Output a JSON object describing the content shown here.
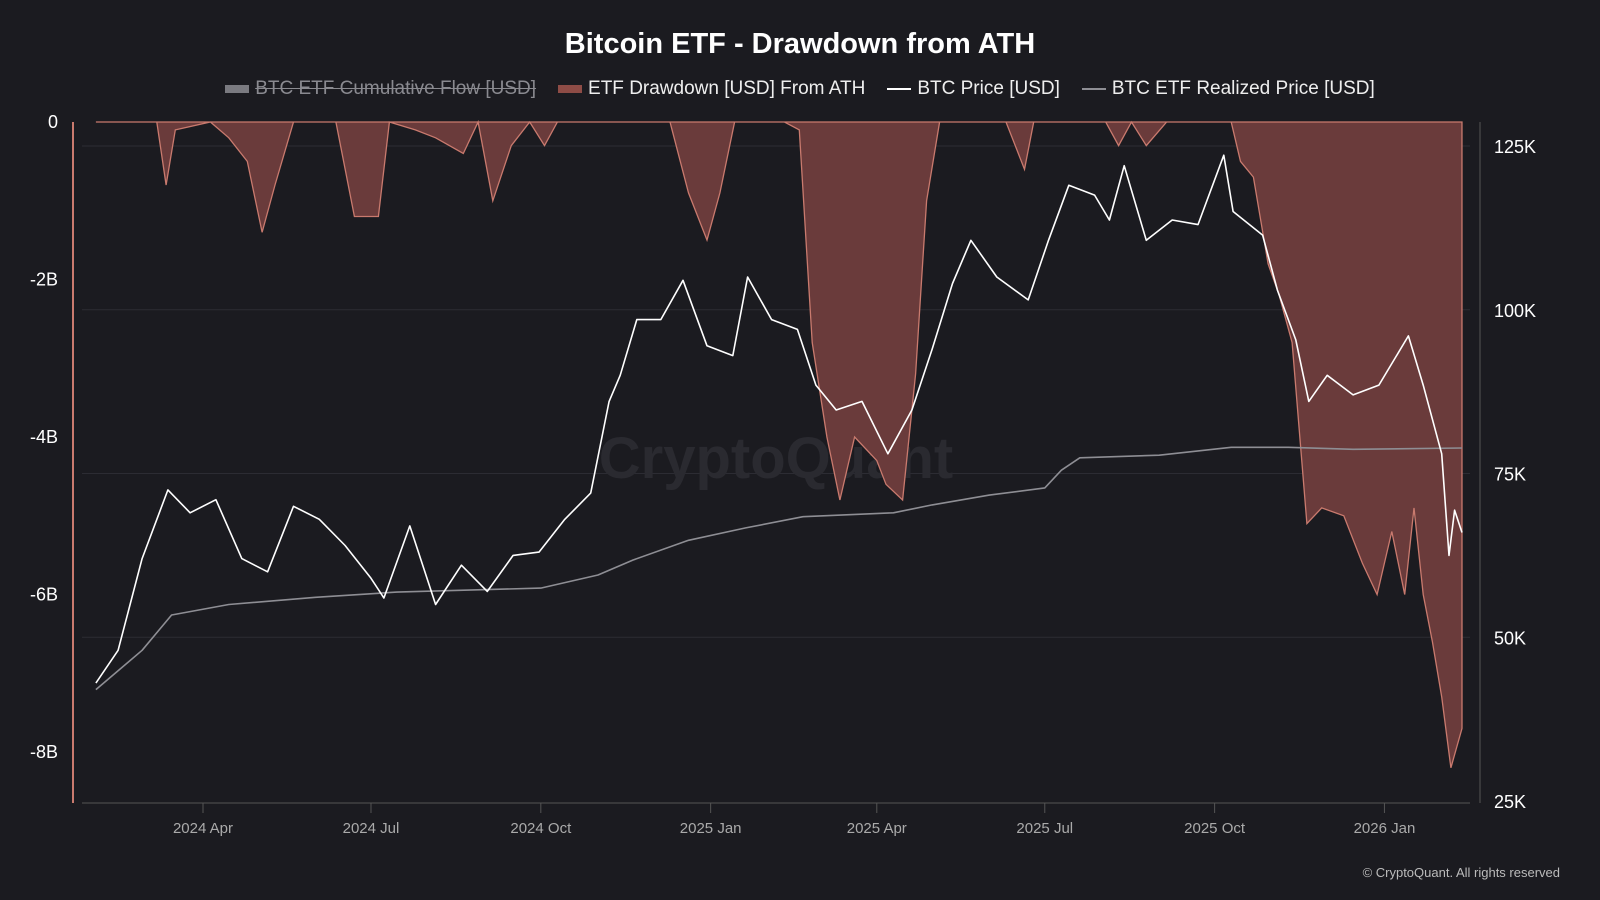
{
  "chart_data": {
    "type": "line",
    "title": "Bitcoin ETF - Drawdown from ATH",
    "legend": [
      {
        "name": "BTC ETF Cumulative Flow [USD]",
        "color": "#8a8a90",
        "hidden": true
      },
      {
        "name": "ETF Drawdown [USD] From ATH",
        "color": "#a85a52"
      },
      {
        "name": "BTC Price [USD]",
        "color": "#ffffff"
      },
      {
        "name": "BTC ETF Realized Price [USD]",
        "color": "#8e8e94"
      }
    ],
    "legend_placement": "top-center",
    "x_ticks": [
      {
        "date": "2024-04-01",
        "label": "2024 Apr"
      },
      {
        "date": "2024-07-01",
        "label": "2024 Jul"
      },
      {
        "date": "2024-10-01",
        "label": "2024 Oct"
      },
      {
        "date": "2025-01-01",
        "label": "2025 Jan"
      },
      {
        "date": "2025-04-01",
        "label": "2025 Apr"
      },
      {
        "date": "2025-07-01",
        "label": "2025 Jul"
      },
      {
        "date": "2025-10-01",
        "label": "2025 Oct"
      },
      {
        "date": "2026-01-01",
        "label": "2026 Jan"
      }
    ],
    "x_range": [
      "2024-02-03",
      "2026-02-12"
    ],
    "left_axis": {
      "unit": "USD billions",
      "range": [
        -8.6,
        0
      ],
      "ticks": [
        {
          "v": 0,
          "label": "0"
        },
        {
          "v": -2,
          "label": "-2B"
        },
        {
          "v": -4,
          "label": "-4B"
        },
        {
          "v": -6,
          "label": "-6B"
        },
        {
          "v": -8,
          "label": "-8B"
        }
      ]
    },
    "right_axis": {
      "unit": "USD thousands",
      "range": [
        25,
        128.7
      ],
      "ticks": [
        {
          "v": 125,
          "label": "125K"
        },
        {
          "v": 100,
          "label": "100K"
        },
        {
          "v": 75,
          "label": "75K"
        },
        {
          "v": 50,
          "label": "50K"
        },
        {
          "v": 25,
          "label": "25K"
        }
      ]
    },
    "grid": true,
    "series": [
      {
        "name": "ETF Drawdown [USD] From ATH",
        "axis": "left",
        "type": "area",
        "points": [
          [
            "2024-02-03",
            0
          ],
          [
            "2024-03-07",
            0
          ],
          [
            "2024-03-12",
            -0.8
          ],
          [
            "2024-03-17",
            -0.1
          ],
          [
            "2024-04-05",
            0
          ],
          [
            "2024-04-15",
            -0.2
          ],
          [
            "2024-04-25",
            -0.5
          ],
          [
            "2024-05-03",
            -1.4
          ],
          [
            "2024-05-10",
            -0.8
          ],
          [
            "2024-05-20",
            0
          ],
          [
            "2024-06-12",
            0
          ],
          [
            "2024-06-22",
            -1.2
          ],
          [
            "2024-07-05",
            -1.2
          ],
          [
            "2024-07-11",
            0
          ],
          [
            "2024-07-25",
            -0.1
          ],
          [
            "2024-08-05",
            -0.2
          ],
          [
            "2024-08-20",
            -0.4
          ],
          [
            "2024-08-28",
            0
          ],
          [
            "2024-09-05",
            -1.0
          ],
          [
            "2024-09-15",
            -0.3
          ],
          [
            "2024-09-25",
            0
          ],
          [
            "2024-10-03",
            -0.3
          ],
          [
            "2024-10-10",
            0
          ],
          [
            "2024-12-10",
            0
          ],
          [
            "2024-12-20",
            -0.9
          ],
          [
            "2024-12-30",
            -1.5
          ],
          [
            "2025-01-06",
            -0.9
          ],
          [
            "2025-01-14",
            0
          ],
          [
            "2025-02-10",
            0
          ],
          [
            "2025-02-18",
            -0.1
          ],
          [
            "2025-02-25",
            -2.8
          ],
          [
            "2025-03-05",
            -4.0
          ],
          [
            "2025-03-12",
            -4.8
          ],
          [
            "2025-03-20",
            -4.0
          ],
          [
            "2025-04-01",
            -4.3
          ],
          [
            "2025-04-06",
            -4.6
          ],
          [
            "2025-04-15",
            -4.8
          ],
          [
            "2025-04-22",
            -3.2
          ],
          [
            "2025-04-28",
            -1.0
          ],
          [
            "2025-05-05",
            0
          ],
          [
            "2025-06-10",
            0
          ],
          [
            "2025-06-20",
            -0.6
          ],
          [
            "2025-06-25",
            0
          ],
          [
            "2025-08-03",
            0
          ],
          [
            "2025-08-10",
            -0.3
          ],
          [
            "2025-08-17",
            0
          ],
          [
            "2025-08-25",
            -0.3
          ],
          [
            "2025-09-05",
            0
          ],
          [
            "2025-10-10",
            0
          ],
          [
            "2025-10-15",
            -0.5
          ],
          [
            "2025-10-22",
            -0.7
          ],
          [
            "2025-10-30",
            -1.8
          ],
          [
            "2025-11-05",
            -2.2
          ],
          [
            "2025-11-12",
            -2.8
          ],
          [
            "2025-11-20",
            -5.1
          ],
          [
            "2025-11-28",
            -4.9
          ],
          [
            "2025-12-10",
            -5.0
          ],
          [
            "2025-12-20",
            -5.6
          ],
          [
            "2025-12-28",
            -6.0
          ],
          [
            "2026-01-05",
            -5.2
          ],
          [
            "2026-01-12",
            -6.0
          ],
          [
            "2026-01-17",
            -4.9
          ],
          [
            "2026-01-22",
            -6.0
          ],
          [
            "2026-01-27",
            -6.6
          ],
          [
            "2026-02-01",
            -7.3
          ],
          [
            "2026-02-06",
            -8.2
          ],
          [
            "2026-02-12",
            -7.7
          ]
        ]
      },
      {
        "name": "BTC Price [USD]",
        "axis": "right",
        "type": "line",
        "points": [
          [
            "2024-02-03",
            43
          ],
          [
            "2024-02-15",
            48
          ],
          [
            "2024-02-28",
            62
          ],
          [
            "2024-03-13",
            72.5
          ],
          [
            "2024-03-25",
            69
          ],
          [
            "2024-04-08",
            71
          ],
          [
            "2024-04-22",
            62
          ],
          [
            "2024-05-06",
            60
          ],
          [
            "2024-05-20",
            70
          ],
          [
            "2024-06-03",
            68
          ],
          [
            "2024-06-17",
            64
          ],
          [
            "2024-07-01",
            59
          ],
          [
            "2024-07-08",
            56
          ],
          [
            "2024-07-22",
            67
          ],
          [
            "2024-08-05",
            55
          ],
          [
            "2024-08-19",
            61
          ],
          [
            "2024-09-02",
            57
          ],
          [
            "2024-09-16",
            62.5
          ],
          [
            "2024-09-30",
            63
          ],
          [
            "2024-10-14",
            68
          ],
          [
            "2024-10-28",
            72
          ],
          [
            "2024-11-07",
            86
          ],
          [
            "2024-11-13",
            90
          ],
          [
            "2024-11-22",
            98.5
          ],
          [
            "2024-12-05",
            98.5
          ],
          [
            "2024-12-17",
            104.5
          ],
          [
            "2024-12-30",
            94.5
          ],
          [
            "2025-01-13",
            93
          ],
          [
            "2025-01-21",
            105
          ],
          [
            "2025-02-03",
            98.5
          ],
          [
            "2025-02-17",
            97
          ],
          [
            "2025-02-27",
            88.5
          ],
          [
            "2025-03-10",
            84.7
          ],
          [
            "2025-03-24",
            86
          ],
          [
            "2025-04-07",
            78
          ],
          [
            "2025-04-20",
            84.7
          ],
          [
            "2025-05-01",
            94
          ],
          [
            "2025-05-12",
            104
          ],
          [
            "2025-05-22",
            110.6
          ],
          [
            "2025-06-05",
            105
          ],
          [
            "2025-06-22",
            101.5
          ],
          [
            "2025-07-03",
            110.6
          ],
          [
            "2025-07-14",
            119
          ],
          [
            "2025-07-28",
            117.5
          ],
          [
            "2025-08-05",
            113.7
          ],
          [
            "2025-08-13",
            122
          ],
          [
            "2025-08-25",
            110.6
          ],
          [
            "2025-09-08",
            113.7
          ],
          [
            "2025-09-22",
            113
          ],
          [
            "2025-10-06",
            123.6
          ],
          [
            "2025-10-11",
            115
          ],
          [
            "2025-10-27",
            111.4
          ],
          [
            "2025-11-04",
            103
          ],
          [
            "2025-11-14",
            95.4
          ],
          [
            "2025-11-21",
            86
          ],
          [
            "2025-12-01",
            90
          ],
          [
            "2025-12-15",
            87
          ],
          [
            "2025-12-29",
            88.5
          ],
          [
            "2026-01-14",
            96
          ],
          [
            "2026-01-22",
            88.5
          ],
          [
            "2026-02-01",
            78
          ],
          [
            "2026-02-05",
            62.5
          ],
          [
            "2026-02-08",
            69.4
          ],
          [
            "2026-02-12",
            66
          ]
        ]
      },
      {
        "name": "BTC ETF Realized Price [USD]",
        "axis": "right",
        "type": "line",
        "points": [
          [
            "2024-02-03",
            42
          ],
          [
            "2024-02-28",
            48
          ],
          [
            "2024-03-15",
            53.4
          ],
          [
            "2024-04-15",
            55
          ],
          [
            "2024-06-01",
            56.1
          ],
          [
            "2024-07-15",
            56.9
          ],
          [
            "2024-10-01",
            57.5
          ],
          [
            "2024-11-01",
            59.5
          ],
          [
            "2024-11-20",
            61.8
          ],
          [
            "2024-12-20",
            64.8
          ],
          [
            "2025-01-20",
            66.7
          ],
          [
            "2025-02-20",
            68.4
          ],
          [
            "2025-04-10",
            69
          ],
          [
            "2025-05-01",
            70.2
          ],
          [
            "2025-06-01",
            71.7
          ],
          [
            "2025-07-01",
            72.8
          ],
          [
            "2025-07-10",
            75.5
          ],
          [
            "2025-07-20",
            77.4
          ],
          [
            "2025-09-01",
            77.8
          ],
          [
            "2025-10-10",
            79
          ],
          [
            "2025-11-10",
            79
          ],
          [
            "2025-12-15",
            78.7
          ],
          [
            "2026-02-12",
            78.9
          ]
        ]
      }
    ],
    "watermark": "CryptoQuant",
    "credit": "© CryptoQuant. All rights reserved"
  }
}
